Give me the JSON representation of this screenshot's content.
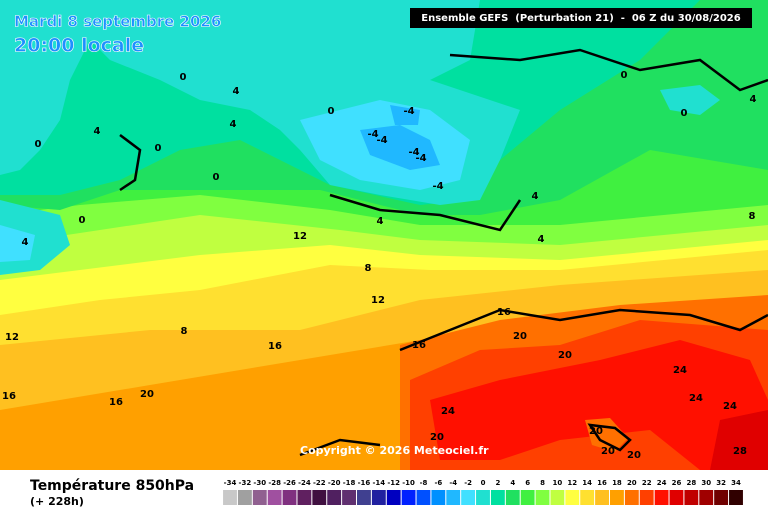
{
  "header": {
    "date": "Mardi 8 septembre 2026",
    "time": "20:00 locale",
    "run": "Ensemble GEFS  (Perturbation 21)  -  06 Z du 30/08/2026"
  },
  "copyright": "Copyright © 2026 Meteociel.fr",
  "variable": {
    "name": "Température 850hPa",
    "lead": "(+ 228h)"
  },
  "legend": {
    "labels": [
      -34,
      -32,
      -30,
      -28,
      -26,
      -24,
      -22,
      -20,
      -18,
      -16,
      -14,
      -12,
      -10,
      -8,
      -6,
      -4,
      -2,
      0,
      2,
      4,
      6,
      8,
      10,
      12,
      14,
      16,
      18,
      20,
      22,
      24,
      26,
      28,
      30,
      32,
      34
    ],
    "colors": [
      "#c8c8c8",
      "#a0a0a0",
      "#906090",
      "#a050a0",
      "#803080",
      "#602060",
      "#401040",
      "#502060",
      "#603070",
      "#404090",
      "#2020a0",
      "#0000c0",
      "#0020ff",
      "#0050ff",
      "#0090ff",
      "#20b8ff",
      "#40e0ff",
      "#20e0d0",
      "#00e0a0",
      "#20e060",
      "#40f040",
      "#80ff40",
      "#c0ff40",
      "#ffff40",
      "#ffe030",
      "#ffc020",
      "#ffa000",
      "#ff7000",
      "#ff4000",
      "#ff1000",
      "#e00000",
      "#c00000",
      "#a00000",
      "#700000",
      "#300000"
    ]
  },
  "contour_labels": [
    0,
    4,
    4,
    4,
    0,
    0,
    0,
    0,
    4,
    0,
    -4,
    -4,
    -4,
    -4,
    -4,
    -4,
    4,
    4,
    4,
    8,
    4,
    0,
    0,
    12,
    8,
    12,
    8,
    12,
    16,
    16,
    16,
    20,
    20,
    16,
    16,
    20,
    24,
    24,
    24,
    24,
    20,
    20,
    20,
    20,
    28
  ]
}
